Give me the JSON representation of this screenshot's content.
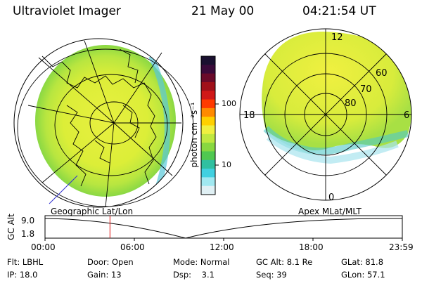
{
  "header": {
    "title": "Ultraviolet Imager",
    "date": "21 May 00",
    "time": "04:21:54 UT"
  },
  "maps": {
    "left_caption": "Geographic Lat/Lon",
    "right_caption": "Apex MLat/MLT",
    "polar_mlt_labels": {
      "top": "12",
      "left": "18",
      "right": "6",
      "bottom": "0"
    },
    "polar_lat_labels": [
      "60",
      "70",
      "80"
    ]
  },
  "colorbar": {
    "unit_label": "photon cm⁻²s⁻¹",
    "tick_high": "100",
    "tick_low": "10",
    "colors": [
      "#1a1030",
      "#3a0a3a",
      "#6a0a2a",
      "#a0101a",
      "#d01818",
      "#ff3a00",
      "#ff8a00",
      "#ffd000",
      "#f0f040",
      "#c0e840",
      "#88d840",
      "#50c850",
      "#30c0a0",
      "#40d0e0",
      "#a0e8f0",
      "#e0f0f4"
    ]
  },
  "timeline": {
    "y_axis_title": "GC Alt",
    "y_ticks": [
      "9.0",
      "1.8"
    ],
    "x_ticks": [
      "00:00",
      "06:00",
      "12:00",
      "18:00",
      "23:59"
    ],
    "current_hour": 4.36
  },
  "status": {
    "flt": {
      "label": "Flt:",
      "value": "LBHL"
    },
    "ip": {
      "label": "IP:",
      "value": "18.0"
    },
    "door": {
      "label": "Door:",
      "value": "Open"
    },
    "gain": {
      "label": "Gain:",
      "value": "13"
    },
    "mode": {
      "label": "Mode:",
      "value": "Normal"
    },
    "dsp": {
      "label": "Dsp:",
      "value": "3.1"
    },
    "gcalt": {
      "label": "GC Alt:",
      "value": "8.1 Re"
    },
    "seq": {
      "label": "Seq:",
      "value": "39"
    },
    "glat": {
      "label": "GLat:",
      "value": "81.8"
    },
    "glon": {
      "label": "GLon:",
      "value": "57.1"
    }
  }
}
